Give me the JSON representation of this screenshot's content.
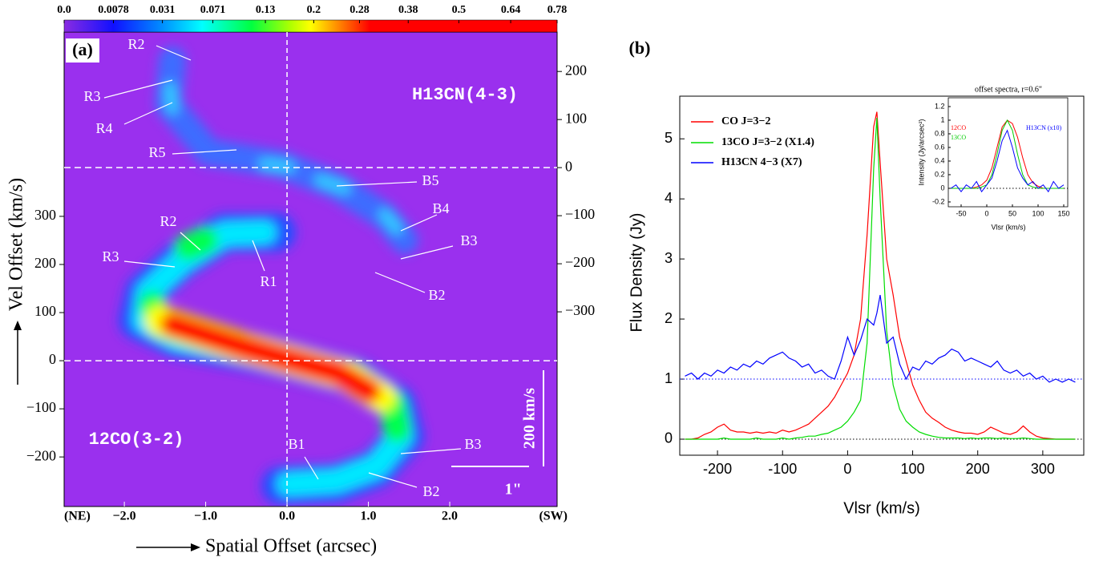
{
  "chart_data": [
    {
      "type": "image",
      "title": "(a)",
      "xlabel": "Spatial Offset (arcsec)",
      "ylabel": "Vel Offset (km/s)",
      "xlim": [
        -2.74,
        3.32
      ],
      "ylim": [
        -303,
        683
      ],
      "y2lim": [
        -705,
        282
      ],
      "xticks": [
        {
          "value": -2,
          "label": "−2.0"
        },
        {
          "value": -1,
          "label": "−1.0"
        },
        {
          "value": 0,
          "label": "0.0"
        },
        {
          "value": 1,
          "label": "1.0"
        },
        {
          "value": 2,
          "label": "2.0"
        }
      ],
      "yticks": [
        {
          "value": -200,
          "label": "−200"
        },
        {
          "value": -100,
          "label": "−100"
        },
        0,
        100,
        200,
        300
      ],
      "y2ticks": [
        200,
        100,
        0,
        {
          "value": -100,
          "label": "−100"
        },
        {
          "value": -200,
          "label": "−200"
        },
        {
          "value": -300,
          "label": "−300"
        }
      ],
      "x_end_labels": [
        "(NE)",
        "(SW)"
      ],
      "map_labels": [
        "H13CN(4-3)",
        "12CO(3-2)"
      ],
      "annotations": [
        "R2",
        "R3",
        "R4",
        "R5",
        "B5",
        "B4",
        "B3",
        "B2",
        "R2",
        "R3",
        "R1",
        "B1",
        "B3",
        "B2"
      ],
      "scale_bars": [
        "200 km/s",
        "1\""
      ],
      "colorbar": {
        "lim": [
          0,
          0.78
        ],
        "scale": "sqrt",
        "ticks": [
          {
            "value": 0,
            "label": "0.0"
          },
          0.0078,
          0.031,
          0.071,
          0.13,
          0.2,
          0.28,
          0.38,
          0.5,
          0.64,
          0.78
        ]
      }
    },
    {
      "type": "line",
      "title": "(b)",
      "xlabel": "Vlsr (km/s)",
      "ylabel": "Flux Density (Jy)",
      "xlim": [
        -258,
        363
      ],
      "ylim": [
        -0.267,
        5.71
      ],
      "xticks": [
        -200,
        -100,
        0,
        100,
        200,
        300
      ],
      "yticks": [
        0,
        1,
        2,
        3,
        4,
        5
      ],
      "legend": "upper left",
      "hlines": [
        {
          "value": 1,
          "color": "#0000ff"
        },
        {
          "value": 0,
          "color": "#000000"
        }
      ],
      "x": [
        -250,
        -240,
        -230,
        -220,
        -210,
        -200,
        -190,
        -180,
        -170,
        -160,
        -150,
        -140,
        -130,
        -120,
        -110,
        -100,
        -90,
        -80,
        -70,
        -60,
        -50,
        -40,
        -30,
        -20,
        -10,
        0,
        10,
        20,
        30,
        40,
        45,
        50,
        60,
        70,
        80,
        90,
        100,
        110,
        120,
        130,
        140,
        150,
        160,
        170,
        180,
        190,
        200,
        210,
        220,
        230,
        240,
        250,
        260,
        270,
        280,
        290,
        300,
        310,
        320,
        330,
        340,
        350
      ],
      "series": [
        {
          "name": "CO J=3−2",
          "color": "#ff0000",
          "values": [
            0,
            0,
            0.02,
            0.08,
            0.12,
            0.2,
            0.25,
            0.15,
            0.12,
            0.12,
            0.1,
            0.12,
            0.1,
            0.12,
            0.1,
            0.15,
            0.12,
            0.15,
            0.2,
            0.25,
            0.35,
            0.45,
            0.55,
            0.7,
            0.9,
            1.1,
            1.4,
            2.0,
            3.4,
            5.2,
            5.45,
            4.6,
            3.0,
            2.4,
            1.7,
            1.3,
            0.9,
            0.65,
            0.45,
            0.35,
            0.28,
            0.2,
            0.15,
            0.12,
            0.1,
            0.1,
            0.08,
            0.12,
            0.2,
            0.15,
            0.1,
            0.08,
            0.12,
            0.22,
            0.12,
            0.05,
            0.02,
            0.01,
            0,
            0,
            0,
            0
          ]
        },
        {
          "name": "13CO J=3−2 (X1.4)",
          "color": "#00dd00",
          "values": [
            0,
            0,
            0,
            0,
            0,
            0,
            0.02,
            0,
            0,
            0,
            0,
            0.02,
            0,
            0,
            0,
            0.02,
            0,
            0.02,
            0.03,
            0.05,
            0.05,
            0.08,
            0.1,
            0.15,
            0.2,
            0.3,
            0.45,
            0.65,
            1.6,
            4.5,
            5.35,
            4.0,
            1.8,
            0.9,
            0.5,
            0.3,
            0.2,
            0.12,
            0.08,
            0.05,
            0.03,
            0.02,
            0.02,
            0.02,
            0.01,
            0.02,
            0.01,
            0.02,
            0.02,
            0.01,
            0.02,
            0.01,
            0.01,
            0.02,
            0.01,
            0,
            0,
            0,
            0,
            0,
            0,
            0
          ]
        },
        {
          "name": "H13CN 4−3 (X7)",
          "color": "#0000ff",
          "values": [
            1.05,
            1.1,
            1.0,
            1.1,
            1.05,
            1.15,
            1.1,
            1.2,
            1.15,
            1.25,
            1.2,
            1.3,
            1.25,
            1.35,
            1.4,
            1.45,
            1.35,
            1.3,
            1.2,
            1.25,
            1.1,
            1.15,
            1.05,
            1.0,
            1.3,
            1.7,
            1.4,
            1.65,
            2.0,
            1.9,
            2.1,
            2.4,
            1.6,
            1.7,
            1.25,
            1.0,
            1.2,
            1.15,
            1.3,
            1.25,
            1.35,
            1.4,
            1.5,
            1.45,
            1.3,
            1.35,
            1.3,
            1.25,
            1.2,
            1.3,
            1.15,
            1.1,
            1.15,
            1.05,
            1.1,
            1.0,
            1.05,
            0.95,
            1.0,
            0.95,
            1.0,
            0.95
          ]
        }
      ]
    },
    {
      "type": "line",
      "title": "offset spectra, r=0.6\"",
      "xlabel": "Vlsr (km/s)",
      "ylabel": "Intensity (Jy/arcsec²)",
      "xlim": [
        -75,
        157.8
      ],
      "ylim": [
        -0.271,
        1.329
      ],
      "xticks": [
        -50,
        0,
        50,
        100,
        150
      ],
      "yticks": [
        -0.2,
        0,
        0.2,
        0.4,
        0.6,
        0.8,
        1,
        1.2
      ],
      "hlines": [
        {
          "value": 0,
          "color": "#000000"
        }
      ],
      "x": [
        -70,
        -60,
        -50,
        -40,
        -30,
        -20,
        -10,
        0,
        10,
        20,
        30,
        40,
        50,
        60,
        70,
        80,
        90,
        100,
        110,
        120,
        130,
        140,
        150
      ],
      "series": [
        {
          "name": "12CO",
          "color": "#ff0000",
          "values": [
            0,
            0,
            0,
            0,
            0,
            0.02,
            0.05,
            0.12,
            0.3,
            0.6,
            0.9,
            1.0,
            0.95,
            0.75,
            0.45,
            0.2,
            0.08,
            0.03,
            0,
            0,
            0,
            0,
            0
          ]
        },
        {
          "name": "13CO",
          "color": "#00cc00",
          "values": [
            0,
            0,
            0,
            0,
            0,
            0,
            0.02,
            0.05,
            0.2,
            0.5,
            0.85,
            1.0,
            0.85,
            0.5,
            0.2,
            0.05,
            0.02,
            0,
            0,
            0,
            0,
            0,
            0
          ]
        },
        {
          "name": "H13CN (x10)",
          "color": "#0000ff",
          "values": [
            0,
            0.05,
            -0.05,
            0.05,
            0,
            0.1,
            -0.05,
            0.05,
            0.15,
            0.4,
            0.7,
            0.85,
            0.6,
            0.3,
            0.15,
            0.05,
            0.1,
            0,
            0.05,
            -0.05,
            0.1,
            0,
            0.05
          ]
        }
      ]
    }
  ]
}
